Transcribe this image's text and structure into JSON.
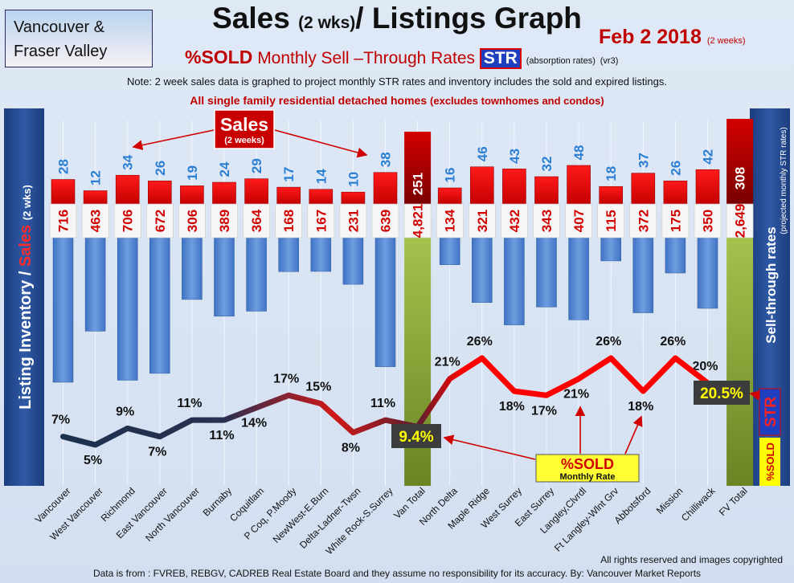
{
  "header": {
    "region_line1": "Vancouver &",
    "region_line2": "Fraser Valley",
    "title_main": "Sales",
    "title_paren": "(2 wks)",
    "title_rest": "/ Listings Graph",
    "date": "Feb 2 2018",
    "date_note": "(2 weeks)",
    "sold_label": "%SOLD",
    "str_rates_label": "Monthly Sell –Through Rates",
    "str_box": "STR",
    "absorption": "(absorption rates)",
    "version": "(vr3)",
    "note": "Note: 2 week sales data is graphed to project monthly STR rates and inventory includes the sold and expired listings.",
    "subtitle_bold": "All single family residential detached homes",
    "subtitle_small": "(excludes townhomes and condos)"
  },
  "footer": {
    "rights": "All rights reserved and  images copyrighted",
    "source": "Data is from : FVREB, REBGV, CADREB Real Estate Board and they assume no responsibility for its accuracy. By: Vancouver Market Reports"
  },
  "colors": {
    "sales": "#ff0000",
    "inventory": "#5a8fd8",
    "total": "#7a9a2e",
    "total_sales": "#b00000",
    "panel": "#244a8f",
    "line_low": "#1c3050",
    "line_high": "#ff0000"
  },
  "chart_data": {
    "type": "bar",
    "left_axis_label": "Listing Inventory / Sales (2 wks)",
    "right_axis_label": "Sell-through rates",
    "right_axis_note": "(projected monthly STR rates)",
    "sales_callout": "Sales",
    "sales_callout_sub": "(2 weeks)",
    "rate_callout": "%SOLD",
    "rate_callout_sub": "Monthly Rate",
    "right_str_box": "STR",
    "right_sold_box": "%SOLD",
    "categories": [
      "Vancouver",
      "West Vancouver",
      "Richmond",
      "East Vancouver",
      "North Vancouver",
      "Burnaby",
      "Coquitlam",
      "P Coq, P.Moody",
      "NewWest-E.Burn",
      "Delta-Ladner-Twsn",
      "White Rock-S.Surrey",
      "Van Total",
      "North Delta",
      "Maple Ridge",
      "West Surrey",
      "East Surrey",
      "Langley,Clvrdl",
      "Ft Langley-Wlnt Grv",
      "Abbotsford",
      "Mission",
      "Chilliwack",
      "FV Total"
    ],
    "series": [
      {
        "name": "Sales",
        "values": [
          28,
          12,
          34,
          26,
          19,
          24,
          29,
          17,
          14,
          10,
          38,
          251,
          16,
          46,
          43,
          32,
          48,
          18,
          37,
          26,
          42,
          308
        ],
        "labels": [
          "28",
          "12",
          "34",
          "26",
          "19",
          "24",
          "29",
          "17",
          "14",
          "10",
          "38",
          "251",
          "16",
          "46",
          "43",
          "32",
          "48",
          "18",
          "37",
          "26",
          "42",
          "308"
        ]
      },
      {
        "name": "Listing Inventory",
        "values": [
          716,
          463,
          706,
          672,
          306,
          389,
          364,
          168,
          167,
          231,
          639,
          4821,
          134,
          321,
          432,
          343,
          407,
          115,
          372,
          175,
          350,
          2649
        ],
        "labels": [
          "716",
          "463",
          "706",
          "672",
          "306",
          "389",
          "364",
          "168",
          "167",
          "231",
          "639",
          "4,821",
          "134",
          "321",
          "432",
          "343",
          "407",
          "115",
          "372",
          "175",
          "350",
          "2,649"
        ]
      },
      {
        "name": "%SOLD",
        "values": [
          7,
          5,
          9,
          7,
          11,
          11,
          14,
          17,
          15,
          8,
          11,
          9.4,
          21,
          26,
          18,
          17,
          21,
          26,
          18,
          26,
          20,
          20.5
        ],
        "labels": [
          "7%",
          "5%",
          "9%",
          "7%",
          "11%",
          "11%",
          "14%",
          "17%",
          "15%",
          "8%",
          "11%",
          "9.4%",
          "21%",
          "26%",
          "18%",
          "17%",
          "21%",
          "26%",
          "18%",
          "26%",
          "20%",
          "20.5%"
        ]
      }
    ]
  }
}
